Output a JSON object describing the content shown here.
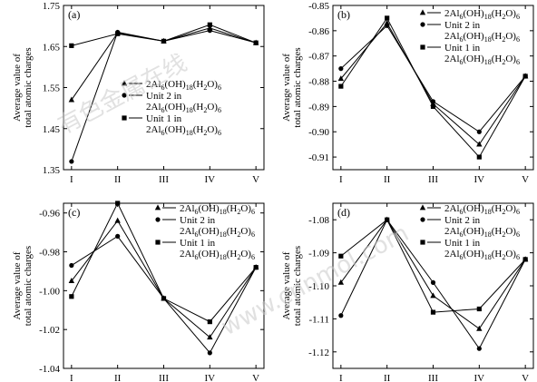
{
  "chart_data": [
    {
      "type": "line",
      "panel_label": "(a)",
      "categories": [
        "I",
        "II",
        "III",
        "IV",
        "V"
      ],
      "ylabel_lines": [
        "Average value of",
        "total atomic charges"
      ],
      "ylim": [
        1.35,
        1.75
      ],
      "yticks": [
        1.75,
        1.65,
        1.55,
        1.45,
        1.35
      ],
      "ytick_labels": [
        "1.75",
        "1.65",
        "1.55",
        "1.45",
        "1.35"
      ],
      "series": [
        {
          "marker": "triangle",
          "legend_lines": [
            "2Al6(OH)18(H2O)6"
          ],
          "values": [
            1.52,
            1.683,
            1.663,
            1.695,
            1.659
          ]
        },
        {
          "marker": "circle",
          "legend_lines": [
            "Unit 2 in",
            "2Al6(OH)18(H2O)6"
          ],
          "values": [
            1.37,
            1.685,
            1.663,
            1.689,
            1.659
          ]
        },
        {
          "marker": "square",
          "legend_lines": [
            "Unit 1 in",
            "2Al6(OH)18(H2O)6"
          ],
          "values": [
            1.652,
            1.681,
            1.663,
            1.703,
            1.659
          ]
        }
      ]
    },
    {
      "type": "line",
      "panel_label": "(b)",
      "categories": [
        "I",
        "II",
        "III",
        "IV",
        "V"
      ],
      "ylabel_lines": [
        "Average value of",
        "total atomic charges"
      ],
      "ylim": [
        -0.915,
        -0.85
      ],
      "yticks": [
        -0.85,
        -0.86,
        -0.87,
        -0.88,
        -0.89,
        -0.9,
        -0.91
      ],
      "ytick_labels": [
        "-0.85",
        "-0.86",
        "-0.87",
        "-0.88",
        "-0.89",
        "-0.90",
        "-0.91"
      ],
      "series": [
        {
          "marker": "triangle",
          "legend_lines": [
            "2Al6(OH)18(H2O)6"
          ],
          "values": [
            -0.879,
            -0.857,
            -0.889,
            -0.905,
            -0.878
          ]
        },
        {
          "marker": "circle",
          "legend_lines": [
            "Unit 2 in",
            "2Al6(OH)18(H2O)6"
          ],
          "values": [
            -0.875,
            -0.858,
            -0.888,
            -0.9,
            -0.878
          ]
        },
        {
          "marker": "square",
          "legend_lines": [
            "Unit 1 in",
            "2Al6(OH)18(H2O)6"
          ],
          "values": [
            -0.882,
            -0.855,
            -0.89,
            -0.91,
            -0.878
          ]
        }
      ]
    },
    {
      "type": "line",
      "panel_label": "(c)",
      "categories": [
        "I",
        "II",
        "III",
        "IV",
        "V"
      ],
      "ylabel_lines": [
        "Average value of",
        "total atomic charges"
      ],
      "ylim": [
        -1.04,
        -0.955
      ],
      "yticks": [
        -0.96,
        -0.98,
        -1.0,
        -1.02,
        -1.04
      ],
      "ytick_labels": [
        "-0.96",
        "-0.98",
        "-1.00",
        "-1.02",
        "-1.04"
      ],
      "series": [
        {
          "marker": "triangle",
          "legend_lines": [
            "2Al6(OH)18(H2O)6"
          ],
          "values": [
            -0.995,
            -0.964,
            -1.004,
            -1.024,
            -0.988
          ]
        },
        {
          "marker": "circle",
          "legend_lines": [
            "Unit 2 in",
            "2Al6(OH)18(H2O)6"
          ],
          "values": [
            -0.987,
            -0.972,
            -1.004,
            -1.032,
            -0.988
          ]
        },
        {
          "marker": "square",
          "legend_lines": [
            "Unit 1 in",
            "2Al6(OH)18(H2O)6"
          ],
          "values": [
            -1.003,
            -0.955,
            -1.004,
            -1.016,
            -0.988
          ]
        }
      ]
    },
    {
      "type": "line",
      "panel_label": "(d)",
      "categories": [
        "I",
        "II",
        "III",
        "IV",
        "V"
      ],
      "ylabel_lines": [
        "Average value of",
        "total atomic charges"
      ],
      "ylim": [
        -1.125,
        -1.075
      ],
      "yticks": [
        -1.08,
        -1.09,
        -1.1,
        -1.11,
        -1.12
      ],
      "ytick_labels": [
        "-1.08",
        "-1.09",
        "-1.10",
        "-1.11",
        "-1.12"
      ],
      "series": [
        {
          "marker": "triangle",
          "legend_lines": [
            "2Al6(OH)18(H2O)6"
          ],
          "values": [
            -1.099,
            -1.08,
            -1.103,
            -1.113,
            -1.092
          ]
        },
        {
          "marker": "circle",
          "legend_lines": [
            "Unit 2 in",
            "2Al6(OH)18(H2O)6"
          ],
          "values": [
            -1.109,
            -1.08,
            -1.099,
            -1.119,
            -1.092
          ]
        },
        {
          "marker": "square",
          "legend_lines": [
            "Unit 1 in",
            "2Al6(OH)18(H2O)6"
          ],
          "values": [
            -1.091,
            -1.08,
            -1.108,
            -1.107,
            -1.092
          ]
        }
      ]
    }
  ],
  "watermarks": [
    "有色金属在线",
    "www.cnnmol.com"
  ],
  "colors": {
    "line": "#000000",
    "watermark": "#c9c9c9"
  }
}
